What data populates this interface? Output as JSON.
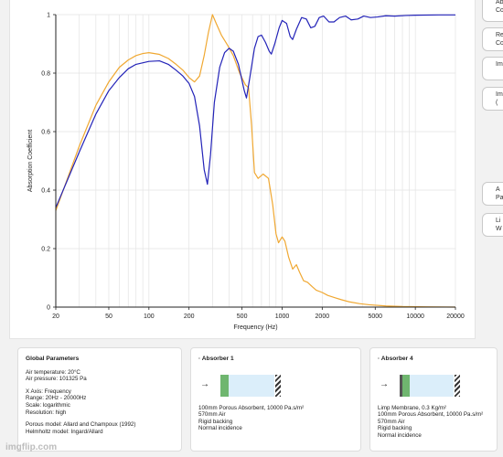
{
  "colors": {
    "series_blue": "#2323b8",
    "series_orange": "#f0a832",
    "porous": "#dbeefa",
    "membrane": "#6fb66f"
  },
  "side_buttons": [
    "Ab\nCo",
    "Re\nCo",
    "Im",
    "Im\n(",
    "A\nPar",
    "Li\nW"
  ],
  "global_params": {
    "title": "Global Parameters",
    "air": [
      "Air temperature: 20°C",
      "Air pressure: 101325 Pa"
    ],
    "axis": [
      "X Axis: Frequency",
      "Range: 20Hz - 20000Hz",
      "Scale: logarithmic",
      "Resolution: high"
    ],
    "models": [
      "Porous model: Allard and Champoux (1992)",
      "Helmholtz model: Ingard/Allard"
    ]
  },
  "absorber1": {
    "title": "Absorber 1",
    "lines": [
      "100mm Porous Absorbent, 10000 Pa.s/m²",
      "570mm Air",
      "Rigid backing",
      "Normal incidence"
    ]
  },
  "absorber4": {
    "title": "Absorber 4",
    "lines": [
      "Limp Membrane, 0.3 Kg/m²",
      "100mm Porous Absorbent, 10000 Pa.s/m²",
      "570mm Air",
      "Rigid backing",
      "Normal incidence"
    ]
  },
  "watermark": "imgflip.com",
  "chart_data": {
    "type": "line",
    "xlabel": "Frequency (Hz)",
    "ylabel": "Absorption Coefficient",
    "xscale": "log",
    "xlim": [
      20,
      20000
    ],
    "ylim": [
      0,
      1
    ],
    "x_ticks": [
      20,
      50,
      100,
      200,
      500,
      1000,
      2000,
      5000,
      10000,
      20000
    ],
    "x_tick_labels": [
      "20",
      "50",
      "100",
      "200",
      "500",
      "1000",
      "2000",
      "5000",
      "10000",
      "20000"
    ],
    "y_ticks": [
      0,
      0.2,
      0.4,
      0.6,
      0.8,
      1
    ],
    "y_tick_labels": [
      "0",
      "0.2",
      "0.4",
      "0.6",
      "0.8",
      "1"
    ],
    "grid": true,
    "series": [
      {
        "color": "#2323b8",
        "points": [
          [
            20,
            0.34
          ],
          [
            30,
            0.53
          ],
          [
            40,
            0.66
          ],
          [
            50,
            0.74
          ],
          [
            60,
            0.785
          ],
          [
            70,
            0.815
          ],
          [
            80,
            0.83
          ],
          [
            100,
            0.84
          ],
          [
            120,
            0.842
          ],
          [
            140,
            0.83
          ],
          [
            160,
            0.81
          ],
          [
            180,
            0.79
          ],
          [
            200,
            0.765
          ],
          [
            220,
            0.72
          ],
          [
            240,
            0.62
          ],
          [
            260,
            0.47
          ],
          [
            275,
            0.42
          ],
          [
            290,
            0.52
          ],
          [
            310,
            0.7
          ],
          [
            340,
            0.82
          ],
          [
            370,
            0.87
          ],
          [
            400,
            0.885
          ],
          [
            430,
            0.875
          ],
          [
            470,
            0.83
          ],
          [
            520,
            0.74
          ],
          [
            540,
            0.715
          ],
          [
            570,
            0.78
          ],
          [
            620,
            0.885
          ],
          [
            660,
            0.925
          ],
          [
            700,
            0.93
          ],
          [
            750,
            0.905
          ],
          [
            800,
            0.875
          ],
          [
            830,
            0.865
          ],
          [
            880,
            0.9
          ],
          [
            950,
            0.955
          ],
          [
            1000,
            0.98
          ],
          [
            1080,
            0.97
          ],
          [
            1150,
            0.925
          ],
          [
            1200,
            0.915
          ],
          [
            1280,
            0.95
          ],
          [
            1400,
            0.99
          ],
          [
            1520,
            0.985
          ],
          [
            1640,
            0.955
          ],
          [
            1760,
            0.96
          ],
          [
            1900,
            0.99
          ],
          [
            2050,
            0.995
          ],
          [
            2250,
            0.975
          ],
          [
            2450,
            0.975
          ],
          [
            2700,
            0.99
          ],
          [
            3000,
            0.995
          ],
          [
            3300,
            0.982
          ],
          [
            3700,
            0.985
          ],
          [
            4100,
            0.995
          ],
          [
            4600,
            0.99
          ],
          [
            5200,
            0.992
          ],
          [
            6000,
            0.996
          ],
          [
            7000,
            0.995
          ],
          [
            8500,
            0.997
          ],
          [
            10000,
            0.998
          ],
          [
            15000,
            0.999
          ],
          [
            20000,
            0.999
          ]
        ]
      },
      {
        "color": "#f0a832",
        "points": [
          [
            20,
            0.33
          ],
          [
            30,
            0.55
          ],
          [
            40,
            0.69
          ],
          [
            50,
            0.77
          ],
          [
            60,
            0.82
          ],
          [
            70,
            0.845
          ],
          [
            80,
            0.86
          ],
          [
            90,
            0.867
          ],
          [
            100,
            0.87
          ],
          [
            120,
            0.864
          ],
          [
            140,
            0.85
          ],
          [
            160,
            0.83
          ],
          [
            180,
            0.81
          ],
          [
            200,
            0.785
          ],
          [
            220,
            0.77
          ],
          [
            240,
            0.79
          ],
          [
            260,
            0.86
          ],
          [
            280,
            0.94
          ],
          [
            300,
            1.0
          ],
          [
            320,
            0.97
          ],
          [
            350,
            0.93
          ],
          [
            390,
            0.895
          ],
          [
            430,
            0.86
          ],
          [
            480,
            0.8
          ],
          [
            530,
            0.76
          ],
          [
            560,
            0.75
          ],
          [
            590,
            0.62
          ],
          [
            620,
            0.46
          ],
          [
            660,
            0.44
          ],
          [
            720,
            0.455
          ],
          [
            790,
            0.44
          ],
          [
            850,
            0.35
          ],
          [
            900,
            0.25
          ],
          [
            940,
            0.22
          ],
          [
            1000,
            0.24
          ],
          [
            1050,
            0.225
          ],
          [
            1120,
            0.17
          ],
          [
            1200,
            0.13
          ],
          [
            1280,
            0.145
          ],
          [
            1350,
            0.12
          ],
          [
            1450,
            0.09
          ],
          [
            1550,
            0.085
          ],
          [
            1680,
            0.07
          ],
          [
            1800,
            0.058
          ],
          [
            2000,
            0.05
          ],
          [
            2200,
            0.04
          ],
          [
            2500,
            0.032
          ],
          [
            2800,
            0.025
          ],
          [
            3200,
            0.018
          ],
          [
            3800,
            0.012
          ],
          [
            4500,
            0.008
          ],
          [
            6000,
            0.004
          ],
          [
            8000,
            0.002
          ],
          [
            12000,
            0.001
          ],
          [
            20000,
            0.0
          ]
        ]
      }
    ]
  }
}
